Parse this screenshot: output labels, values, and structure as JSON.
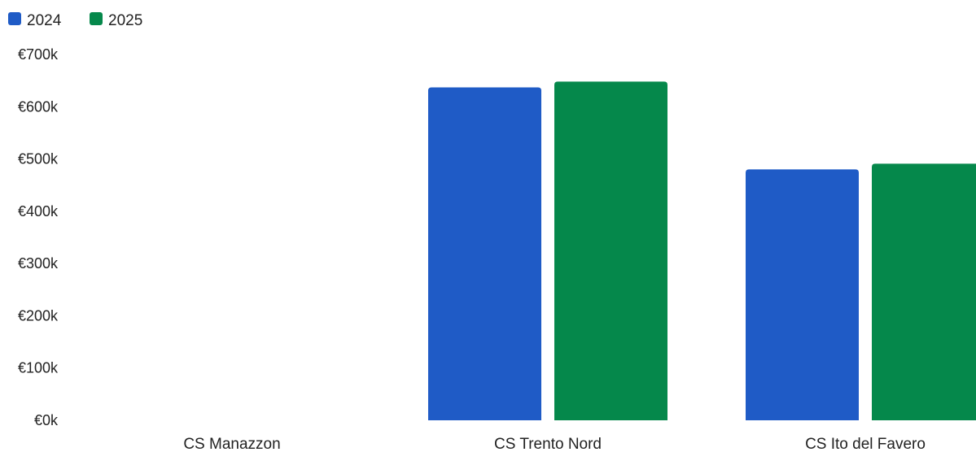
{
  "chart_data": {
    "type": "bar",
    "title": "",
    "xlabel": "",
    "ylabel": "",
    "categories": [
      "CS Manazzon",
      "CS Trento Nord",
      "CS Ito del Favero"
    ],
    "series": [
      {
        "name": "2024",
        "color": "#1f5bc6",
        "values": [
          0,
          637,
          480
        ]
      },
      {
        "name": "2025",
        "color": "#05884b",
        "values": [
          0,
          648,
          491
        ]
      }
    ],
    "ylim": [
      0,
      700
    ],
    "yticks": [
      0,
      100,
      200,
      300,
      400,
      500,
      600,
      700
    ],
    "ytick_labels": [
      "€0k",
      "€100k",
      "€200k",
      "€300k",
      "€400k",
      "€500k",
      "€600k",
      "€700k"
    ],
    "value_unit": "€k",
    "legend_position": "top-left",
    "grid": false
  }
}
